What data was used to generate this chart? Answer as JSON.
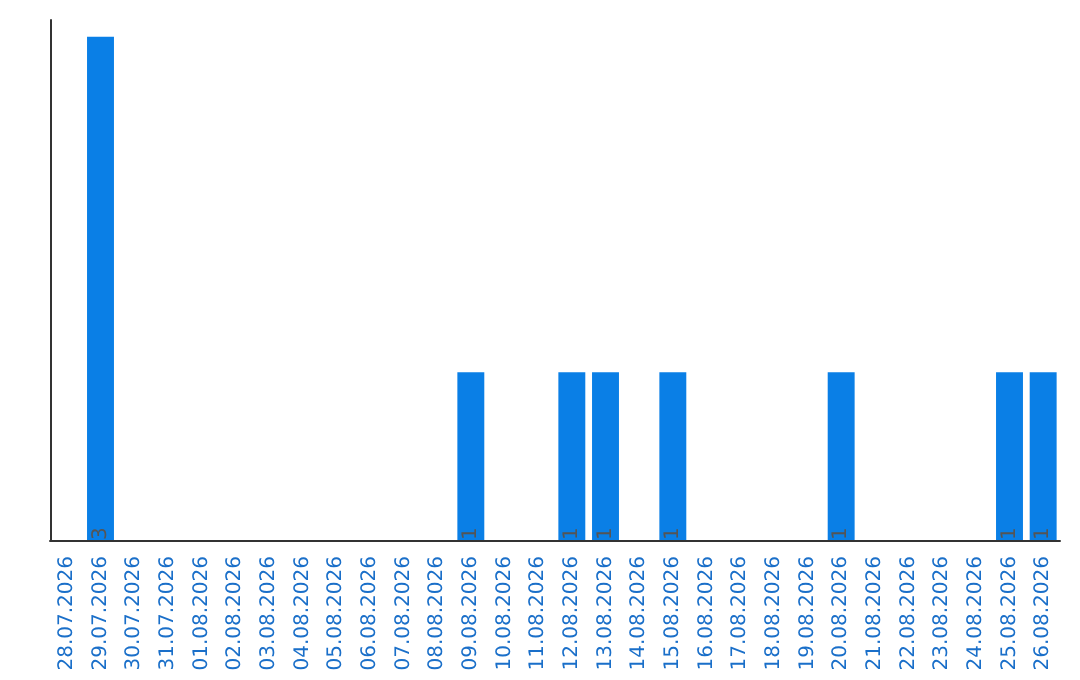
{
  "chart_data": {
    "type": "bar",
    "categories": [
      "28.07.2026",
      "29.07.2026",
      "30.07.2026",
      "31.07.2026",
      "01.08.2026",
      "02.08.2026",
      "03.08.2026",
      "04.08.2026",
      "05.08.2026",
      "06.08.2026",
      "07.08.2026",
      "08.08.2026",
      "09.08.2026",
      "10.08.2026",
      "11.08.2026",
      "12.08.2026",
      "13.08.2026",
      "14.08.2026",
      "15.08.2026",
      "16.08.2026",
      "17.08.2026",
      "18.08.2026",
      "19.08.2026",
      "20.08.2026",
      "21.08.2026",
      "22.08.2026",
      "23.08.2026",
      "24.08.2026",
      "25.08.2026",
      "26.08.2026"
    ],
    "values": [
      0,
      3,
      0,
      0,
      0,
      0,
      0,
      0,
      0,
      0,
      0,
      0,
      1,
      0,
      0,
      1,
      1,
      0,
      1,
      0,
      0,
      0,
      0,
      1,
      0,
      0,
      0,
      0,
      1,
      1
    ],
    "value_labels": [
      null,
      "3",
      null,
      null,
      null,
      null,
      null,
      null,
      null,
      null,
      null,
      null,
      "1",
      null,
      null,
      "1",
      "1",
      null,
      "1",
      null,
      null,
      null,
      null,
      "1",
      null,
      null,
      null,
      null,
      "1",
      "1"
    ],
    "color": "#0a7fe6",
    "ylim": [
      0,
      3.1
    ],
    "tick_labels": "x",
    "grid": false
  }
}
